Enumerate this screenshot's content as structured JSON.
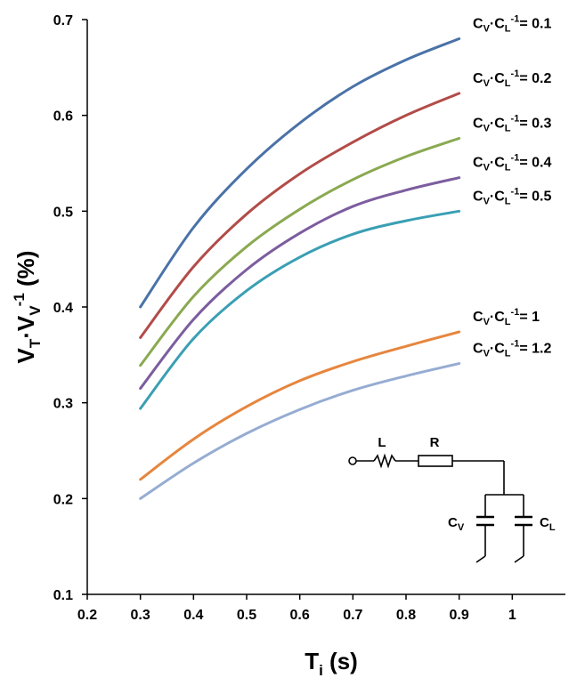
{
  "chart_data": {
    "type": "line",
    "xlabel": {
      "main": "T",
      "sub": "i",
      "unit": " (s)"
    },
    "ylabel": {
      "v1": "V",
      "s1": "T",
      "mid": "·V",
      "s2": "V",
      "sup": "-1",
      "unit": " (%)"
    },
    "xlim": [
      0.2,
      1.1
    ],
    "ylim": [
      0.1,
      0.7
    ],
    "xticks": [
      "0.2",
      "0.3",
      "0.4",
      "0.5",
      "0.6",
      "0.7",
      "0.8",
      "0.9",
      "1"
    ],
    "yticks": [
      "0.1",
      "0.2",
      "0.3",
      "0.4",
      "0.5",
      "0.6",
      "0.7"
    ],
    "x": [
      0.3,
      0.4,
      0.5,
      0.6,
      0.7,
      0.8,
      0.9
    ],
    "series": [
      {
        "ratio": "0.1",
        "color": "#4a72a8",
        "values": [
          0.4,
          0.483,
          0.544,
          0.592,
          0.63,
          0.658,
          0.68
        ]
      },
      {
        "ratio": "0.2",
        "color": "#b24c48",
        "values": [
          0.368,
          0.442,
          0.497,
          0.539,
          0.572,
          0.6,
          0.623
        ]
      },
      {
        "ratio": "0.3",
        "color": "#8aa951",
        "values": [
          0.339,
          0.411,
          0.463,
          0.502,
          0.533,
          0.557,
          0.576
        ]
      },
      {
        "ratio": "0.4",
        "color": "#7c5d9e",
        "values": [
          0.315,
          0.387,
          0.439,
          0.477,
          0.505,
          0.522,
          0.535
        ]
      },
      {
        "ratio": "0.5",
        "color": "#3a9fb4",
        "values": [
          0.294,
          0.367,
          0.417,
          0.452,
          0.476,
          0.49,
          0.5
        ]
      },
      {
        "ratio": "1",
        "color": "#e6863e",
        "values": [
          0.22,
          0.262,
          0.296,
          0.323,
          0.343,
          0.359,
          0.374
        ]
      },
      {
        "ratio": "1.2",
        "color": "#96acd2",
        "values": [
          0.2,
          0.237,
          0.268,
          0.293,
          0.313,
          0.328,
          0.341
        ]
      }
    ],
    "label_prefix": {
      "c1": "C",
      "s1": "V",
      "mid": "·C",
      "s2": "L",
      "sup": "-1",
      "eq": "= "
    }
  },
  "circuit": {
    "inductor_label": "L",
    "resistor_label": "R",
    "cap1": {
      "main": "C",
      "sub": "V"
    },
    "cap2": {
      "main": "C",
      "sub": "L"
    }
  }
}
